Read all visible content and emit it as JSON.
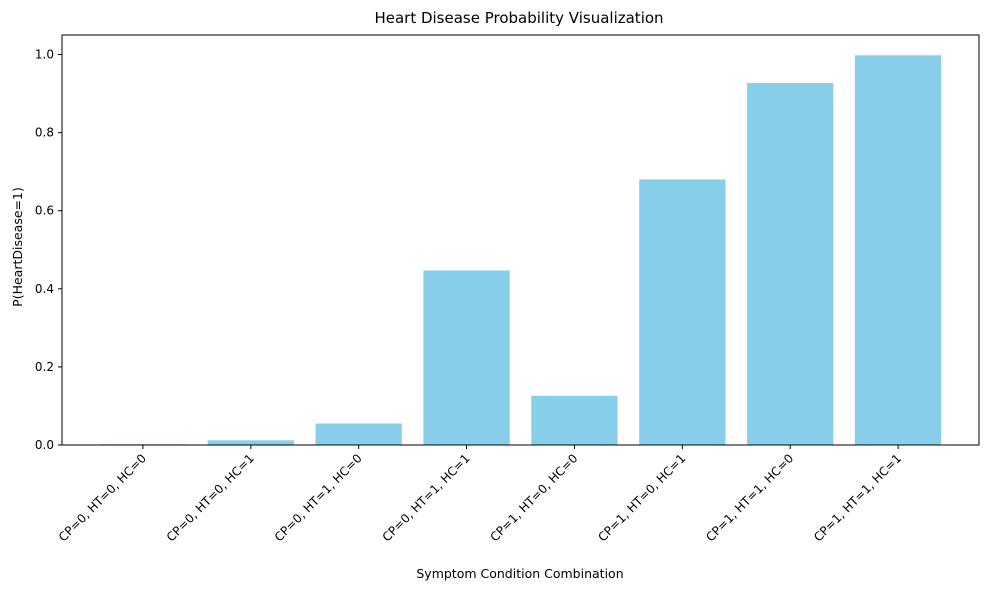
{
  "chart_data": {
    "type": "bar",
    "title": "Heart Disease Probability Visualization",
    "xlabel": "Symptom Condition Combination",
    "ylabel": "P(HeartDisease=1)",
    "categories": [
      "CP=0, HT=0, HC=0",
      "CP=0, HT=0, HC=1",
      "CP=0, HT=1, HC=0",
      "CP=0, HT=1, HC=1",
      "CP=1, HT=0, HC=0",
      "CP=1, HT=0, HC=1",
      "CP=1, HT=1, HC=0",
      "CP=1, HT=1, HC=1"
    ],
    "values": [
      0.002,
      0.012,
      0.055,
      0.447,
      0.126,
      0.68,
      0.927,
      0.998
    ],
    "ylim": [
      0,
      1.05
    ],
    "yticks": [
      0.0,
      0.2,
      0.4,
      0.6,
      0.8,
      1.0
    ],
    "ytick_labels": [
      "0.0",
      "0.2",
      "0.4",
      "0.6",
      "0.8",
      "1.0"
    ],
    "bar_color": "#87ceeb",
    "grid": false,
    "legend": false
  }
}
